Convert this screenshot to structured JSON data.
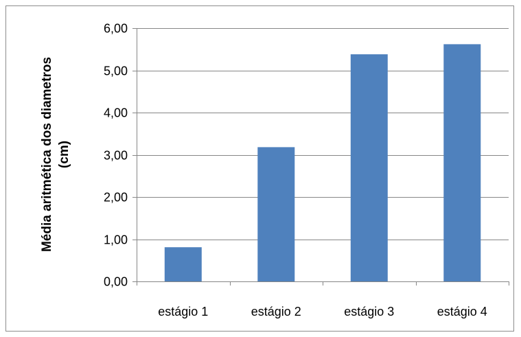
{
  "chart_data": {
    "type": "bar",
    "title": "",
    "xlabel": "",
    "ylabel_lines": [
      "Média aritmética dos diametros",
      "(cm)"
    ],
    "categories": [
      "estágio 1",
      "estágio 2",
      "estágio 3",
      "estágio 4"
    ],
    "values": [
      0.81,
      3.18,
      5.38,
      5.62
    ],
    "ylim": [
      0,
      6
    ],
    "yticks": [
      0,
      1,
      2,
      3,
      4,
      5,
      6
    ],
    "ytick_labels": [
      "0,00",
      "1,00",
      "2,00",
      "3,00",
      "4,00",
      "5,00",
      "6,00"
    ],
    "grid": true,
    "legend": "none",
    "bar_color": "#4F81BD",
    "grid_color": "#868686"
  }
}
